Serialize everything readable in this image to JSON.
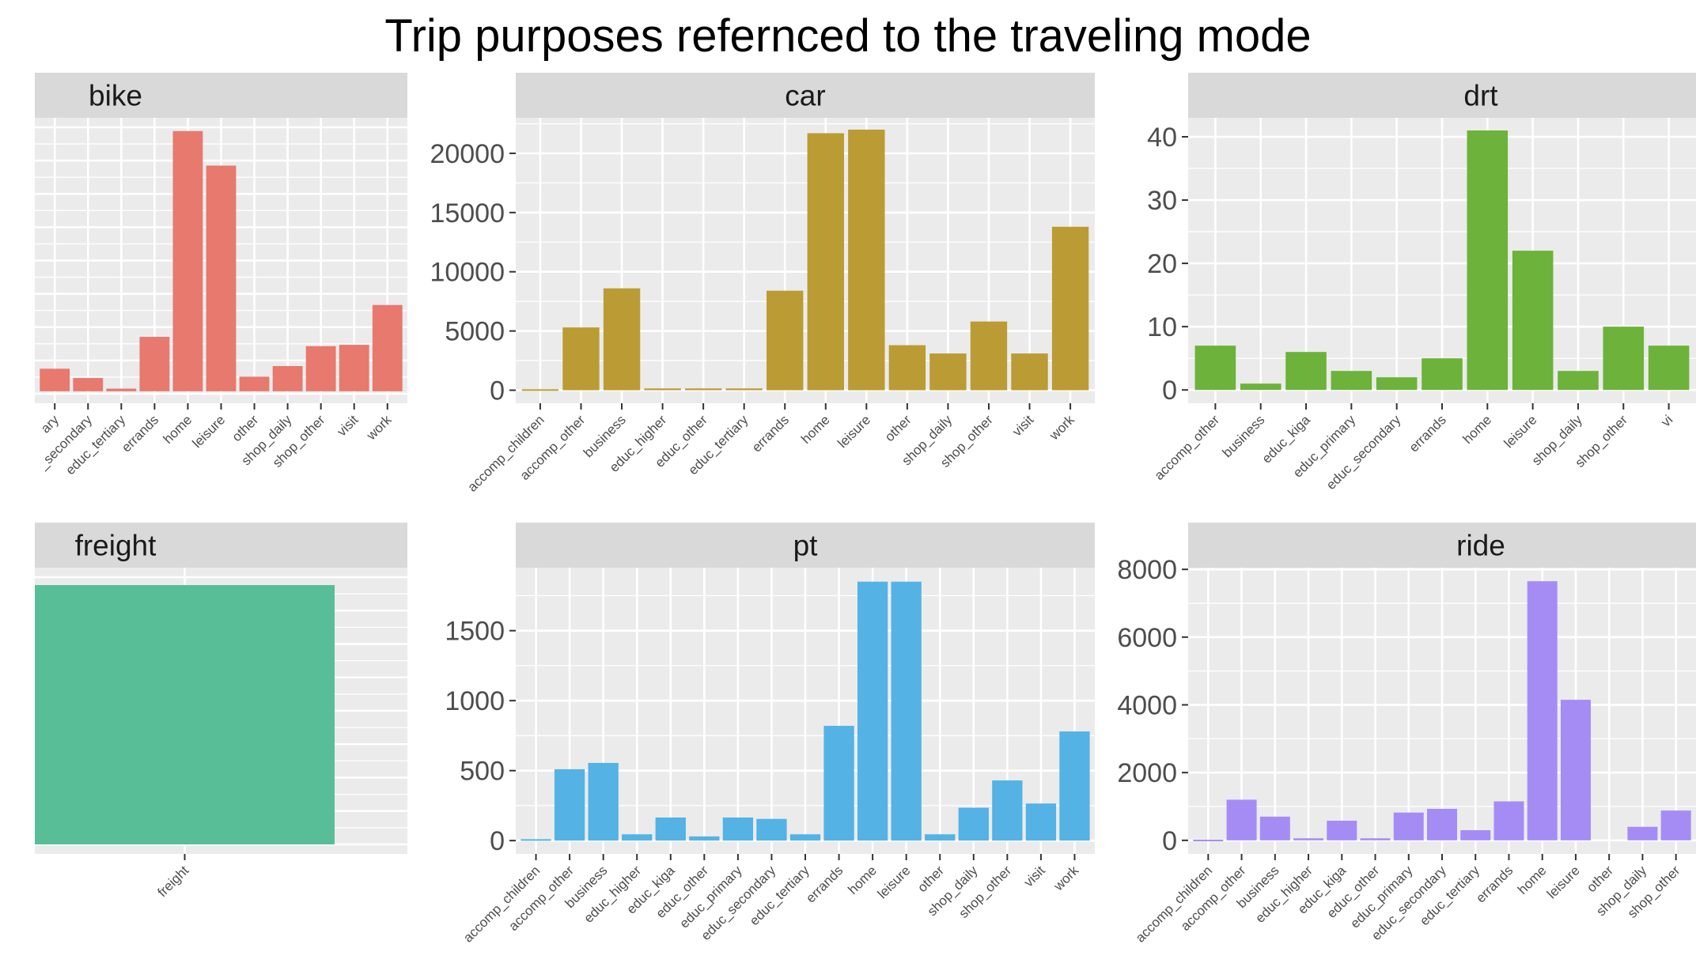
{
  "chart_data": {
    "type": "bar",
    "title": "Trip purposes refernced to the traveling mode",
    "facets": [
      {
        "name": "bike",
        "color": "#E7796F",
        "categories": [
          "educ_primary",
          "educ_secondary",
          "educ_tertiary",
          "errands",
          "home",
          "leisure",
          "other",
          "shop_daily",
          "shop_other",
          "visit",
          "work"
        ],
        "tick_labels": [
          "ary",
          "_secondary",
          "educ_tertiary",
          "errands",
          "home",
          "leisure",
          "other",
          "shop_daily",
          "shop_other",
          "visit",
          "work"
        ],
        "values": [
          8.5,
          5,
          1,
          20.5,
          98,
          85,
          5.5,
          9.5,
          17,
          17.5,
          32.5
        ],
        "ylim": [
          -4.5,
          103
        ],
        "y_ticks": [],
        "y_tick_labels": []
      },
      {
        "name": "car",
        "color": "#BB9B33",
        "categories": [
          "accomp_children",
          "accomp_other",
          "business",
          "educ_higher",
          "educ_other",
          "educ_tertiary",
          "errands",
          "home",
          "leisure",
          "other",
          "shop_daily",
          "shop_other",
          "visit",
          "work"
        ],
        "tick_labels": [
          "accomp_children",
          "accomp_other",
          "business",
          "educ_higher",
          "educ_other",
          "educ_tertiary",
          "errands",
          "home",
          "leisure",
          "other",
          "shop_daily",
          "shop_other",
          "visit",
          "work"
        ],
        "values": [
          80,
          5300,
          8600,
          150,
          150,
          150,
          8400,
          21700,
          22000,
          3800,
          3100,
          5800,
          3100,
          13800
        ],
        "ylim": [
          -1100,
          23000
        ],
        "y_ticks": [
          0,
          5000,
          10000,
          15000,
          20000
        ],
        "y_tick_labels": [
          "0",
          "5000",
          "10000",
          "15000",
          "20000"
        ]
      },
      {
        "name": "drt",
        "color": "#6DB23A",
        "categories": [
          "accomp_other",
          "business",
          "educ_kiga",
          "educ_primary",
          "educ_secondary",
          "errands",
          "home",
          "leisure",
          "shop_daily",
          "shop_other",
          "visit"
        ],
        "tick_labels": [
          "accomp_other",
          "business",
          "educ_kiga",
          "educ_primary",
          "educ_secondary",
          "errands",
          "home",
          "leisure",
          "shop_daily",
          "shop_other",
          "vi"
        ],
        "values": [
          7,
          1,
          6,
          3,
          2,
          5,
          41,
          22,
          3,
          10,
          7
        ],
        "ylim": [
          -2.1,
          43
        ],
        "y_ticks": [
          0,
          10,
          20,
          30,
          40
        ],
        "y_tick_labels": [
          "0",
          "10",
          "20",
          "30",
          "40"
        ]
      },
      {
        "name": "freight",
        "color": "#58BE98",
        "categories": [
          "freight"
        ],
        "tick_labels": [
          "freight"
        ],
        "values": [
          1
        ],
        "ylim": [
          -0.05,
          1.05
        ],
        "y_ticks": [],
        "y_tick_labels": []
      },
      {
        "name": "pt",
        "color": "#54B2E5",
        "categories": [
          "accomp_children",
          "accomp_other",
          "business",
          "educ_higher",
          "educ_kiga",
          "educ_other",
          "educ_primary",
          "educ_secondary",
          "educ_tertiary",
          "errands",
          "home",
          "leisure",
          "other",
          "shop_daily",
          "shop_other",
          "visit",
          "work"
        ],
        "tick_labels": [
          "accomp_children",
          "accomp_other",
          "business",
          "educ_higher",
          "educ_kiga",
          "educ_other",
          "educ_primary",
          "educ_secondary",
          "educ_tertiary",
          "errands",
          "home",
          "leisure",
          "other",
          "shop_daily",
          "shop_other",
          "visit",
          "work"
        ],
        "values": [
          10,
          510,
          555,
          45,
          165,
          30,
          165,
          155,
          45,
          820,
          1850,
          1850,
          45,
          235,
          430,
          265,
          780
        ],
        "ylim": [
          -95,
          1950
        ],
        "y_ticks": [
          0,
          500,
          1000,
          1500
        ],
        "y_tick_labels": [
          "0",
          "500",
          "1000",
          "1500"
        ]
      },
      {
        "name": "ride",
        "color": "#A58CF5",
        "categories": [
          "accomp_children",
          "accomp_other",
          "business",
          "educ_higher",
          "educ_kiga",
          "educ_other",
          "educ_primary",
          "educ_secondary",
          "educ_tertiary",
          "errands",
          "home",
          "leisure",
          "other",
          "shop_daily",
          "shop_other"
        ],
        "tick_labels": [
          "accomp_children",
          "accomp_other",
          "business",
          "educ_higher",
          "educ_kiga",
          "educ_other",
          "educ_primary",
          "educ_secondary",
          "educ_tertiary",
          "errands",
          "home",
          "leisure",
          "other",
          "shop_daily",
          "shop_other"
        ],
        "values": [
          20,
          1200,
          700,
          60,
          580,
          60,
          820,
          930,
          300,
          1150,
          7650,
          4150,
          0,
          400,
          880
        ],
        "ylim": [
          -400,
          8050
        ],
        "y_ticks": [
          0,
          2000,
          4000,
          6000,
          8000
        ],
        "y_tick_labels": [
          "0",
          "2000",
          "4000",
          "6000",
          "8000"
        ]
      }
    ]
  }
}
